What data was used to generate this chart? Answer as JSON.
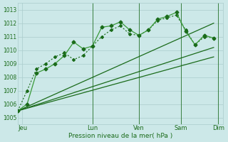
{
  "background_color": "#cce8e8",
  "grid_color": "#aacccc",
  "line_color_dark": "#1a6b1a",
  "line_color_light": "#3a9a3a",
  "title": "Pression niveau de la mer( hPa )",
  "ylabel_ticks": [
    1005,
    1006,
    1007,
    1008,
    1009,
    1010,
    1011,
    1012,
    1013
  ],
  "ylim": [
    1004.5,
    1013.5
  ],
  "xlim": [
    0,
    22
  ],
  "xtick_positions": [
    0.5,
    8,
    13,
    17.5,
    21.5
  ],
  "xtick_labels": [
    "Jeu",
    "Lun",
    "Ven",
    "Sam",
    "Dim"
  ],
  "vlines": [
    8,
    13,
    17.5,
    21.5
  ],
  "series1_x": [
    0,
    1,
    2,
    3,
    4,
    5,
    6,
    7,
    8,
    9,
    10,
    11,
    12,
    13,
    14,
    15,
    16,
    17,
    18,
    19,
    20,
    21
  ],
  "series1_y": [
    1005.5,
    1006.0,
    1008.3,
    1008.6,
    1009.0,
    1009.6,
    1010.6,
    1010.1,
    1010.3,
    1011.7,
    1011.8,
    1012.1,
    1011.5,
    1011.1,
    1011.5,
    1012.3,
    1012.5,
    1012.8,
    1011.4,
    1010.4,
    1011.1,
    1010.9
  ],
  "series2_x": [
    0,
    1,
    2,
    3,
    4,
    5,
    6,
    7,
    8,
    9,
    10,
    11,
    12,
    13,
    14,
    15,
    16,
    17,
    18,
    19,
    20,
    21
  ],
  "series2_y": [
    1005.5,
    1007.0,
    1008.6,
    1009.0,
    1009.5,
    1009.8,
    1009.3,
    1009.6,
    1010.3,
    1011.0,
    1011.5,
    1011.8,
    1011.2,
    1011.1,
    1011.5,
    1012.2,
    1012.4,
    1012.6,
    1011.5,
    1010.4,
    1011.0,
    1010.9
  ],
  "trend1_x": [
    0,
    21
  ],
  "trend1_y": [
    1005.5,
    1010.2
  ],
  "trend2_x": [
    0,
    21
  ],
  "trend2_y": [
    1005.5,
    1012.0
  ],
  "trend3_x": [
    0,
    21
  ],
  "trend3_y": [
    1005.5,
    1009.5
  ]
}
